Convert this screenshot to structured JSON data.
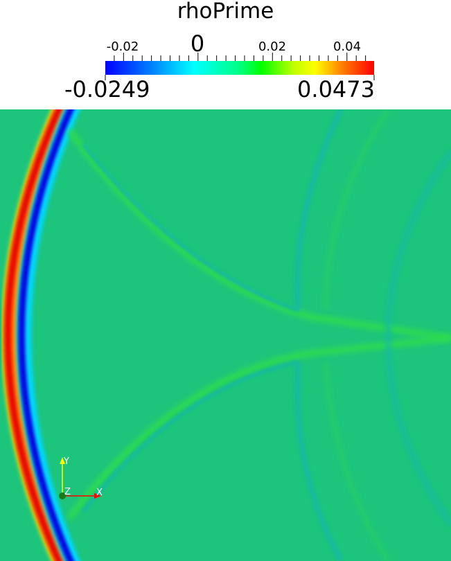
{
  "legend": {
    "title": "rhoPrime",
    "tick_labels": [
      {
        "value": -0.02,
        "label": "-0.02"
      },
      {
        "value": 0,
        "label": "0"
      },
      {
        "value": 0.02,
        "label": "0.02"
      },
      {
        "value": 0.04,
        "label": "0.04"
      }
    ],
    "range_min": "-0.0249",
    "range_max": "0.0473",
    "colormap": [
      "#0000ff",
      "#00ffff",
      "#00ff00",
      "#ffff00",
      "#ff0000"
    ]
  },
  "viewport": {
    "background_color": "#1dc47b"
  },
  "axes_widget": {
    "x_label": "X",
    "y_label": "Y",
    "z_label": "Z",
    "x_color": "#ff0000",
    "y_color": "#ffff00",
    "z_color": "#1a7a1a"
  }
}
